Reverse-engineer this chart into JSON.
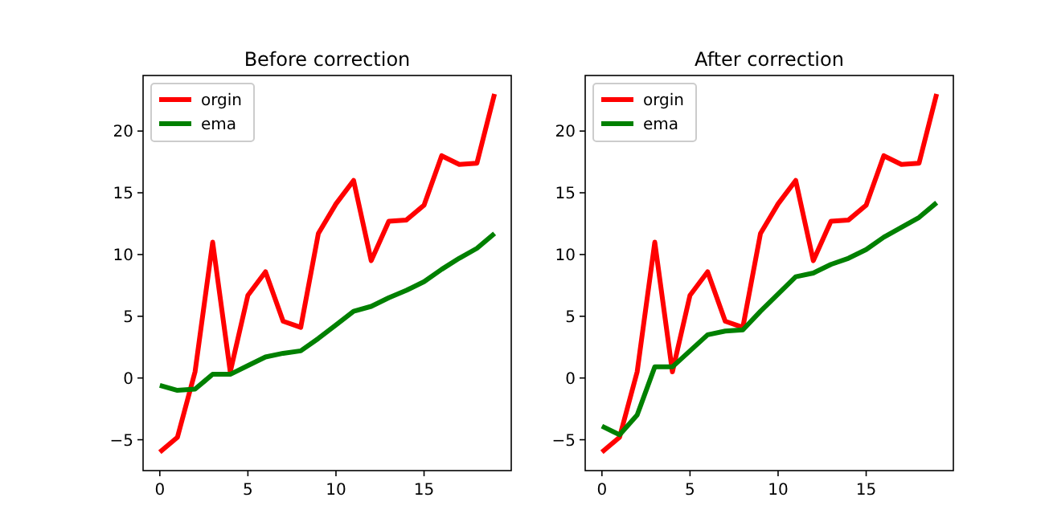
{
  "chart_data": [
    {
      "type": "line",
      "title": "Before correction",
      "x": [
        0,
        1,
        2,
        3,
        4,
        5,
        6,
        7,
        8,
        9,
        10,
        11,
        12,
        13,
        14,
        15,
        16,
        17,
        18,
        19
      ],
      "xlim": [
        -0.95,
        19.95
      ],
      "xticks": [
        0,
        5,
        10,
        15
      ],
      "ylim": [
        -7.5,
        24.5
      ],
      "yticks": [
        -5,
        0,
        5,
        10,
        15,
        20
      ],
      "legend": "top left",
      "grid": false,
      "series": [
        {
          "name": "orgin",
          "color": "#ff0000",
          "values": [
            -6,
            -4.8,
            0.5,
            11,
            0.5,
            6.7,
            8.6,
            4.6,
            4.1,
            11.7,
            14.1,
            16,
            9.5,
            12.7,
            12.8,
            14,
            18,
            17.3,
            17.4,
            23
          ]
        },
        {
          "name": "ema",
          "color": "#008000",
          "values": [
            -0.6,
            -1,
            -0.9,
            0.3,
            0.3,
            1,
            1.7,
            2,
            2.2,
            3.2,
            4.3,
            5.4,
            5.8,
            6.5,
            7.1,
            7.8,
            8.8,
            9.7,
            10.5,
            11.7
          ]
        }
      ]
    },
    {
      "type": "line",
      "title": "After correction",
      "x": [
        0,
        1,
        2,
        3,
        4,
        5,
        6,
        7,
        8,
        9,
        10,
        11,
        12,
        13,
        14,
        15,
        16,
        17,
        18,
        19
      ],
      "xlim": [
        -0.95,
        19.95
      ],
      "xticks": [
        0,
        5,
        10,
        15
      ],
      "ylim": [
        -7.5,
        24.5
      ],
      "yticks": [
        -5,
        0,
        5,
        10,
        15,
        20
      ],
      "legend": "top left",
      "grid": false,
      "series": [
        {
          "name": "orgin",
          "color": "#ff0000",
          "values": [
            -6,
            -4.8,
            0.5,
            11,
            0.5,
            6.7,
            8.6,
            4.6,
            4.1,
            11.7,
            14.1,
            16,
            9.5,
            12.7,
            12.8,
            14,
            18,
            17.3,
            17.4,
            23
          ]
        },
        {
          "name": "ema",
          "color": "#008000",
          "values": [
            -3.9,
            -4.6,
            -3,
            0.9,
            0.9,
            2.2,
            3.5,
            3.8,
            3.9,
            5.4,
            6.8,
            8.2,
            8.5,
            9.2,
            9.7,
            10.4,
            11.4,
            12.2,
            13,
            14.2
          ]
        }
      ]
    }
  ]
}
